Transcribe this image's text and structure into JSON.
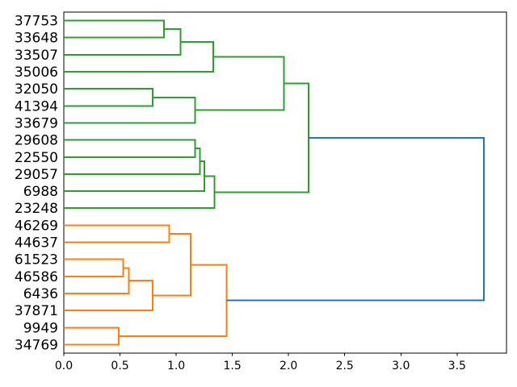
{
  "figure": {
    "kind": "matplotlib-dendrogram-figure",
    "title": ""
  },
  "chart_data": {
    "type": "dendrogram",
    "orientation": "left-leaves-root-right",
    "title": "",
    "xlabel": "",
    "ylabel": "",
    "xlim": [
      0,
      3.94
    ],
    "grid": false,
    "x_ticks": [
      {
        "value": 0.0,
        "label": "0.0"
      },
      {
        "value": 0.5,
        "label": "0.5"
      },
      {
        "value": 1.0,
        "label": "1.0"
      },
      {
        "value": 1.5,
        "label": "1.5"
      },
      {
        "value": 2.0,
        "label": "2.0"
      },
      {
        "value": 2.5,
        "label": "2.5"
      },
      {
        "value": 3.0,
        "label": "3.0"
      },
      {
        "value": 3.5,
        "label": "3.5"
      }
    ],
    "leaves": [
      "37753",
      "33648",
      "33507",
      "35006",
      "32050",
      "41394",
      "33679",
      "29608",
      "22550",
      "29057",
      "6988",
      "23248",
      "46269",
      "44637",
      "61523",
      "46586",
      "6436",
      "37871",
      "9949",
      "34769"
    ],
    "links": [
      {
        "id": "g1",
        "children": [
          "leaf:37753",
          "leaf:33648"
        ],
        "distance": 0.89,
        "color": "green"
      },
      {
        "id": "g2",
        "children": [
          "g1",
          "leaf:33507"
        ],
        "distance": 1.04,
        "color": "green"
      },
      {
        "id": "g3",
        "children": [
          "g2",
          "leaf:35006"
        ],
        "distance": 1.33,
        "color": "green"
      },
      {
        "id": "g4",
        "children": [
          "leaf:32050",
          "leaf:41394"
        ],
        "distance": 0.79,
        "color": "green"
      },
      {
        "id": "g5",
        "children": [
          "g4",
          "leaf:33679"
        ],
        "distance": 1.17,
        "color": "green"
      },
      {
        "id": "g6",
        "children": [
          "g3",
          "g5"
        ],
        "distance": 1.96,
        "color": "green"
      },
      {
        "id": "g7",
        "children": [
          "leaf:29608",
          "leaf:22550"
        ],
        "distance": 1.17,
        "color": "green"
      },
      {
        "id": "g8",
        "children": [
          "g7",
          "leaf:29057"
        ],
        "distance": 1.21,
        "color": "green"
      },
      {
        "id": "g9",
        "children": [
          "g8",
          "leaf:6988"
        ],
        "distance": 1.25,
        "color": "green"
      },
      {
        "id": "g10",
        "children": [
          "g9",
          "leaf:23248"
        ],
        "distance": 1.34,
        "color": "green"
      },
      {
        "id": "g11",
        "children": [
          "g6",
          "g10"
        ],
        "distance": 2.18,
        "color": "green"
      },
      {
        "id": "o1",
        "children": [
          "leaf:46269",
          "leaf:44637"
        ],
        "distance": 0.94,
        "color": "orange"
      },
      {
        "id": "o2",
        "children": [
          "leaf:61523",
          "leaf:46586"
        ],
        "distance": 0.53,
        "color": "orange"
      },
      {
        "id": "o3",
        "children": [
          "o2",
          "leaf:6436"
        ],
        "distance": 0.58,
        "color": "orange"
      },
      {
        "id": "o4",
        "children": [
          "o3",
          "leaf:37871"
        ],
        "distance": 0.79,
        "color": "orange"
      },
      {
        "id": "o5",
        "children": [
          "o1",
          "o4"
        ],
        "distance": 1.13,
        "color": "orange"
      },
      {
        "id": "o6",
        "children": [
          "leaf:9949",
          "leaf:34769"
        ],
        "distance": 0.49,
        "color": "orange"
      },
      {
        "id": "o7",
        "children": [
          "o5",
          "o6"
        ],
        "distance": 1.45,
        "color": "orange"
      },
      {
        "id": "root",
        "children": [
          "g11",
          "o7"
        ],
        "distance": 3.74,
        "color": "blue"
      }
    ],
    "colors": {
      "green": "#2ca02c",
      "orange": "#ff7f0e",
      "blue": "#1f77b4",
      "axis": "#000000",
      "background": "#ffffff"
    }
  }
}
